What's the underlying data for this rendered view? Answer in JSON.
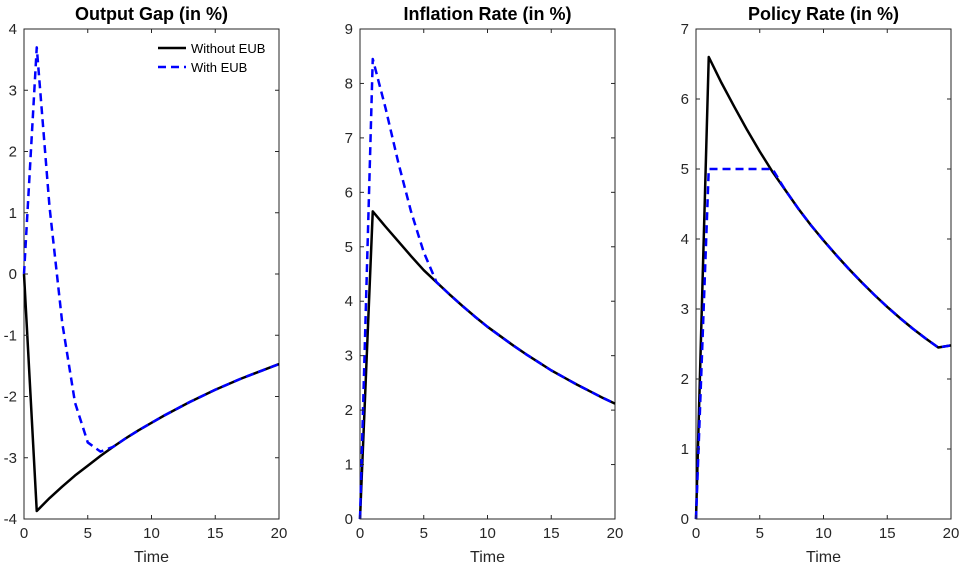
{
  "chart_data": [
    {
      "type": "line",
      "title": "Output Gap (in %)",
      "xlabel": "Time",
      "ylabel": "",
      "xlim": [
        0,
        20
      ],
      "ylim": [
        -4,
        4
      ],
      "xticks": [
        0,
        5,
        10,
        15,
        20
      ],
      "yticks": [
        -4,
        -3,
        -2,
        -1,
        0,
        1,
        2,
        3,
        4
      ],
      "legend": "top-right",
      "series": [
        {
          "name": "Without EUB",
          "color": "#000000",
          "style": "solid",
          "x": [
            0,
            1,
            2,
            3,
            4,
            5,
            6,
            7,
            8,
            9,
            10,
            11,
            12,
            13,
            14,
            15,
            16,
            17,
            18,
            19,
            20
          ],
          "y": [
            0,
            -3.87,
            -3.66,
            -3.47,
            -3.29,
            -3.13,
            -2.97,
            -2.82,
            -2.68,
            -2.55,
            -2.43,
            -2.31,
            -2.2,
            -2.09,
            -1.99,
            -1.89,
            -1.8,
            -1.71,
            -1.63,
            -1.55,
            -1.47
          ]
        },
        {
          "name": "With EUB",
          "color": "#0000ff",
          "style": "dashed",
          "x": [
            0,
            1,
            2,
            3,
            4,
            5,
            6,
            7,
            8,
            9,
            10,
            11,
            12,
            13,
            14,
            15,
            16,
            17,
            18,
            19,
            20
          ],
          "y": [
            0,
            3.7,
            1.1,
            -0.8,
            -2.1,
            -2.75,
            -2.9,
            -2.82,
            -2.68,
            -2.55,
            -2.43,
            -2.31,
            -2.2,
            -2.09,
            -1.99,
            -1.89,
            -1.8,
            -1.71,
            -1.63,
            -1.55,
            -1.47
          ]
        }
      ]
    },
    {
      "type": "line",
      "title": "Inflation Rate (in %)",
      "xlabel": "Time",
      "ylabel": "",
      "xlim": [
        0,
        20
      ],
      "ylim": [
        0,
        9
      ],
      "xticks": [
        0,
        5,
        10,
        15,
        20
      ],
      "yticks": [
        0,
        1,
        2,
        3,
        4,
        5,
        6,
        7,
        8,
        9
      ],
      "series": [
        {
          "name": "Without EUB",
          "color": "#000000",
          "style": "solid",
          "x": [
            0,
            1,
            2,
            3,
            4,
            5,
            6,
            7,
            8,
            9,
            10,
            11,
            12,
            13,
            14,
            15,
            16,
            17,
            18,
            19,
            20
          ],
          "y": [
            0,
            5.65,
            5.37,
            5.1,
            4.83,
            4.57,
            4.35,
            4.13,
            3.92,
            3.72,
            3.53,
            3.36,
            3.19,
            3.03,
            2.88,
            2.73,
            2.6,
            2.47,
            2.35,
            2.23,
            2.12
          ]
        },
        {
          "name": "With EUB",
          "color": "#0000ff",
          "style": "dashed",
          "x": [
            0,
            1,
            2,
            3,
            4,
            5,
            6,
            7,
            8,
            9,
            10,
            11,
            12,
            13,
            14,
            15,
            16,
            17,
            18,
            19,
            20
          ],
          "y": [
            0,
            8.45,
            7.55,
            6.55,
            5.65,
            4.9,
            4.35,
            4.13,
            3.92,
            3.72,
            3.53,
            3.36,
            3.19,
            3.03,
            2.88,
            2.73,
            2.6,
            2.47,
            2.35,
            2.23,
            2.12
          ]
        }
      ]
    },
    {
      "type": "line",
      "title": "Policy Rate (in %)",
      "xlabel": "Time",
      "ylabel": "",
      "xlim": [
        0,
        20
      ],
      "ylim": [
        0,
        7
      ],
      "xticks": [
        0,
        5,
        10,
        15,
        20
      ],
      "yticks": [
        0,
        1,
        2,
        3,
        4,
        5,
        6,
        7
      ],
      "series": [
        {
          "name": "Without EUB",
          "color": "#000000",
          "style": "solid",
          "x": [
            0,
            1,
            2,
            3,
            4,
            5,
            6,
            7,
            8,
            9,
            10,
            11,
            12,
            13,
            14,
            15,
            16,
            17,
            18,
            19,
            20
          ],
          "y": [
            0,
            6.6,
            6.23,
            5.89,
            5.56,
            5.25,
            4.96,
            4.7,
            4.44,
            4.2,
            3.98,
            3.77,
            3.57,
            3.38,
            3.2,
            3.03,
            2.87,
            2.72,
            2.58,
            2.45,
            2.48
          ]
        },
        {
          "name": "With EUB",
          "color": "#0000ff",
          "style": "dashed",
          "x": [
            0,
            1,
            2,
            3,
            4,
            5,
            6,
            7,
            8,
            9,
            10,
            11,
            12,
            13,
            14,
            15,
            16,
            17,
            18,
            19,
            20
          ],
          "y": [
            0,
            5.0,
            5.0,
            5.0,
            5.0,
            5.0,
            5.0,
            4.7,
            4.44,
            4.2,
            3.98,
            3.77,
            3.57,
            3.38,
            3.2,
            3.03,
            2.87,
            2.72,
            2.58,
            2.45,
            2.48
          ]
        }
      ]
    }
  ]
}
